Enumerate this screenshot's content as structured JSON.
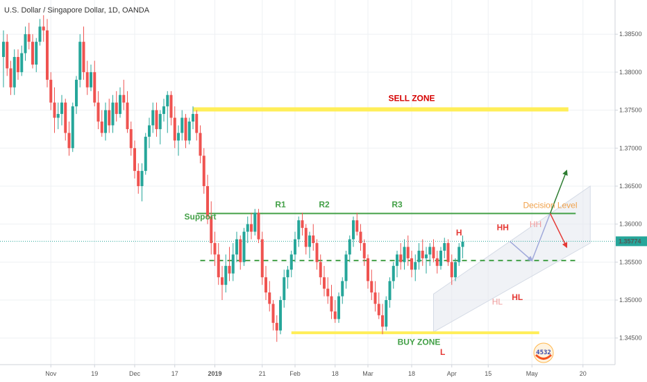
{
  "chart_data": {
    "type": "candlestick",
    "title": "U.S. Dollar / Singapore Dollar, 1D, OANDA",
    "ylim": [
      1.3415,
      1.3895
    ],
    "y_ticks": [
      {
        "value": 1.345,
        "label": "1.34500"
      },
      {
        "value": 1.35,
        "label": "1.35000"
      },
      {
        "value": 1.355,
        "label": "1.35500"
      },
      {
        "value": 1.36,
        "label": "1.36000"
      },
      {
        "value": 1.365,
        "label": "1.36500"
      },
      {
        "value": 1.37,
        "label": "1.37000"
      },
      {
        "value": 1.375,
        "label": "1.37500"
      },
      {
        "value": 1.38,
        "label": "1.38000"
      },
      {
        "value": 1.385,
        "label": "1.38500"
      }
    ],
    "current_price": {
      "value": 1.35774,
      "label": "1.35774"
    },
    "x_ticks": [
      {
        "index": 13,
        "label": "Nov",
        "bold": false
      },
      {
        "index": 25,
        "label": "19",
        "bold": false
      },
      {
        "index": 36,
        "label": "Dec",
        "bold": false
      },
      {
        "index": 47,
        "label": "17",
        "bold": false
      },
      {
        "index": 58,
        "label": "2019",
        "bold": true
      },
      {
        "index": 71,
        "label": "21",
        "bold": false
      },
      {
        "index": 80,
        "label": "Feb",
        "bold": false
      },
      {
        "index": 91,
        "label": "18",
        "bold": false
      },
      {
        "index": 100,
        "label": "Mar",
        "bold": false
      },
      {
        "index": 112,
        "label": "18",
        "bold": false
      },
      {
        "index": 123,
        "label": "Apr",
        "bold": false
      },
      {
        "index": 133,
        "label": "15",
        "bold": false
      },
      {
        "index": 145,
        "label": "May",
        "bold": false
      },
      {
        "index": 159,
        "label": "20",
        "bold": false
      }
    ],
    "candles": [
      [
        1.382,
        1.3855,
        1.378,
        1.384
      ],
      [
        1.384,
        1.385,
        1.3795,
        1.3805
      ],
      [
        1.3805,
        1.3815,
        1.377,
        1.378
      ],
      [
        1.378,
        1.383,
        1.377,
        1.382
      ],
      [
        1.382,
        1.383,
        1.379,
        1.38
      ],
      [
        1.38,
        1.3835,
        1.3795,
        1.3825
      ],
      [
        1.3825,
        1.386,
        1.3815,
        1.385
      ],
      [
        1.385,
        1.3865,
        1.383,
        1.384
      ],
      [
        1.384,
        1.385,
        1.3805,
        1.381
      ],
      [
        1.381,
        1.3845,
        1.38,
        1.384
      ],
      [
        1.384,
        1.387,
        1.3835,
        1.386
      ],
      [
        1.386,
        1.3875,
        1.384,
        1.3855
      ],
      [
        1.3855,
        1.387,
        1.378,
        1.379
      ],
      [
        1.379,
        1.38,
        1.375,
        1.376
      ],
      [
        1.376,
        1.378,
        1.372,
        1.374
      ],
      [
        1.374,
        1.376,
        1.3725,
        1.3745
      ],
      [
        1.3745,
        1.377,
        1.373,
        1.376
      ],
      [
        1.376,
        1.3765,
        1.371,
        1.372
      ],
      [
        1.372,
        1.3735,
        1.369,
        1.37
      ],
      [
        1.37,
        1.376,
        1.3695,
        1.3755
      ],
      [
        1.3755,
        1.3795,
        1.3745,
        1.379
      ],
      [
        1.379,
        1.385,
        1.378,
        1.384
      ],
      [
        1.384,
        1.386,
        1.379,
        1.38
      ],
      [
        1.38,
        1.3815,
        1.377,
        1.378
      ],
      [
        1.378,
        1.381,
        1.3775,
        1.38
      ],
      [
        1.38,
        1.3815,
        1.3755,
        1.376
      ],
      [
        1.376,
        1.3775,
        1.3725,
        1.3735
      ],
      [
        1.3735,
        1.375,
        1.3715,
        1.372
      ],
      [
        1.372,
        1.376,
        1.371,
        1.375
      ],
      [
        1.375,
        1.3765,
        1.372,
        1.373
      ],
      [
        1.373,
        1.377,
        1.372,
        1.376
      ],
      [
        1.376,
        1.3775,
        1.3735,
        1.3745
      ],
      [
        1.3745,
        1.378,
        1.374,
        1.377
      ],
      [
        1.377,
        1.379,
        1.375,
        1.376
      ],
      [
        1.376,
        1.3775,
        1.372,
        1.3725
      ],
      [
        1.3725,
        1.3735,
        1.369,
        1.37
      ],
      [
        1.37,
        1.371,
        1.366,
        1.367
      ],
      [
        1.367,
        1.368,
        1.364,
        1.365
      ],
      [
        1.365,
        1.368,
        1.363,
        1.367
      ],
      [
        1.367,
        1.372,
        1.3665,
        1.3715
      ],
      [
        1.3715,
        1.374,
        1.37,
        1.373
      ],
      [
        1.373,
        1.376,
        1.372,
        1.375
      ],
      [
        1.375,
        1.376,
        1.3715,
        1.3725
      ],
      [
        1.3725,
        1.375,
        1.3705,
        1.3745
      ],
      [
        1.3745,
        1.3765,
        1.3735,
        1.3755
      ],
      [
        1.3755,
        1.3775,
        1.372,
        1.377
      ],
      [
        1.377,
        1.3775,
        1.373,
        1.374
      ],
      [
        1.374,
        1.3755,
        1.37,
        1.371
      ],
      [
        1.371,
        1.373,
        1.369,
        1.372
      ],
      [
        1.372,
        1.375,
        1.371,
        1.374
      ],
      [
        1.374,
        1.3745,
        1.37,
        1.371
      ],
      [
        1.371,
        1.374,
        1.3705,
        1.3735
      ],
      [
        1.3735,
        1.3755,
        1.3725,
        1.3745
      ],
      [
        1.3745,
        1.375,
        1.371,
        1.372
      ],
      [
        1.372,
        1.373,
        1.368,
        1.369
      ],
      [
        1.369,
        1.37,
        1.364,
        1.365
      ],
      [
        1.365,
        1.3665,
        1.36,
        1.361
      ],
      [
        1.361,
        1.363,
        1.356,
        1.3575
      ],
      [
        1.3575,
        1.359,
        1.3545,
        1.356
      ],
      [
        1.356,
        1.3575,
        1.352,
        1.353
      ],
      [
        1.353,
        1.3545,
        1.35,
        1.352
      ],
      [
        1.352,
        1.356,
        1.351,
        1.3545
      ],
      [
        1.3545,
        1.357,
        1.3525,
        1.3535
      ],
      [
        1.3535,
        1.3575,
        1.3525,
        1.356
      ],
      [
        1.356,
        1.359,
        1.355,
        1.358
      ],
      [
        1.358,
        1.3585,
        1.354,
        1.355
      ],
      [
        1.355,
        1.3595,
        1.3545,
        1.359
      ],
      [
        1.359,
        1.361,
        1.3575,
        1.36
      ],
      [
        1.36,
        1.3615,
        1.358,
        1.359
      ],
      [
        1.359,
        1.362,
        1.3585,
        1.3615
      ],
      [
        1.3615,
        1.362,
        1.3575,
        1.358
      ],
      [
        1.358,
        1.359,
        1.352,
        1.353
      ],
      [
        1.353,
        1.3545,
        1.35,
        1.351
      ],
      [
        1.351,
        1.3525,
        1.3485,
        1.3495
      ],
      [
        1.3495,
        1.35,
        1.346,
        1.347
      ],
      [
        1.347,
        1.348,
        1.3445,
        1.346
      ],
      [
        1.346,
        1.3505,
        1.3455,
        1.35
      ],
      [
        1.35,
        1.354,
        1.349,
        1.353
      ],
      [
        1.353,
        1.3545,
        1.3515,
        1.354
      ],
      [
        1.354,
        1.3565,
        1.353,
        1.356
      ],
      [
        1.356,
        1.359,
        1.355,
        1.358
      ],
      [
        1.358,
        1.361,
        1.357,
        1.3605
      ],
      [
        1.3605,
        1.3615,
        1.3585,
        1.3595
      ],
      [
        1.3595,
        1.36,
        1.356,
        1.357
      ],
      [
        1.357,
        1.359,
        1.3555,
        1.3585
      ],
      [
        1.3585,
        1.36,
        1.3565,
        1.3575
      ],
      [
        1.3575,
        1.358,
        1.354,
        1.355
      ],
      [
        1.355,
        1.356,
        1.352,
        1.353
      ],
      [
        1.353,
        1.3545,
        1.3505,
        1.3515
      ],
      [
        1.3515,
        1.353,
        1.3495,
        1.3505
      ],
      [
        1.3505,
        1.352,
        1.3475,
        1.3485
      ],
      [
        1.3485,
        1.35,
        1.347,
        1.3475
      ],
      [
        1.3475,
        1.351,
        1.347,
        1.3505
      ],
      [
        1.3505,
        1.353,
        1.3495,
        1.3525
      ],
      [
        1.3525,
        1.3565,
        1.3515,
        1.356
      ],
      [
        1.356,
        1.3585,
        1.355,
        1.358
      ],
      [
        1.358,
        1.361,
        1.357,
        1.3605
      ],
      [
        1.3605,
        1.3615,
        1.3585,
        1.359
      ],
      [
        1.359,
        1.36,
        1.3565,
        1.3575
      ],
      [
        1.3575,
        1.358,
        1.3545,
        1.3555
      ],
      [
        1.3555,
        1.356,
        1.3515,
        1.3525
      ],
      [
        1.3525,
        1.354,
        1.35,
        1.351
      ],
      [
        1.351,
        1.3525,
        1.3485,
        1.3495
      ],
      [
        1.3495,
        1.351,
        1.3475,
        1.348
      ],
      [
        1.348,
        1.3495,
        1.3455,
        1.3465
      ],
      [
        1.3465,
        1.3505,
        1.346,
        1.35
      ],
      [
        1.35,
        1.353,
        1.349,
        1.3525
      ],
      [
        1.3525,
        1.355,
        1.3515,
        1.3545
      ],
      [
        1.3545,
        1.3565,
        1.353,
        1.356
      ],
      [
        1.356,
        1.3575,
        1.354,
        1.355
      ],
      [
        1.355,
        1.358,
        1.354,
        1.357
      ],
      [
        1.357,
        1.3585,
        1.3545,
        1.3555
      ],
      [
        1.3555,
        1.3565,
        1.353,
        1.354
      ],
      [
        1.354,
        1.356,
        1.3525,
        1.355
      ],
      [
        1.355,
        1.3575,
        1.354,
        1.3565
      ],
      [
        1.3565,
        1.358,
        1.3545,
        1.3555
      ],
      [
        1.3555,
        1.357,
        1.3535,
        1.356
      ],
      [
        1.356,
        1.3575,
        1.3545,
        1.357
      ],
      [
        1.357,
        1.358,
        1.355,
        1.3555
      ],
      [
        1.3555,
        1.3565,
        1.3535,
        1.3545
      ],
      [
        1.3545,
        1.357,
        1.354,
        1.3565
      ],
      [
        1.3565,
        1.3582,
        1.3555,
        1.3575
      ],
      [
        1.3575,
        1.358,
        1.3545,
        1.355
      ],
      [
        1.355,
        1.356,
        1.352,
        1.353
      ],
      [
        1.353,
        1.3555,
        1.3525,
        1.355
      ],
      [
        1.355,
        1.3575,
        1.3545,
        1.357
      ],
      [
        1.357,
        1.3585,
        1.3555,
        1.3577
      ]
    ],
    "annotations": [
      {
        "type": "hline",
        "value": 1.3751,
        "from": 52,
        "to": 155,
        "color": "#ffee58",
        "width": 6,
        "label": "SELL ZONE",
        "label_value": 1.3762,
        "label_at": 112,
        "label_color": "#d50000"
      },
      {
        "type": "hline",
        "value": 1.3457,
        "from": 79,
        "to": 147,
        "color": "#ffee58",
        "width": 4,
        "label": "BUY ZONE",
        "label_value": 1.3441,
        "label_at": 114,
        "label_color": "#43a047"
      },
      {
        "type": "hline",
        "value": 1.3614,
        "from": 53,
        "to": 157,
        "color": "#43a047",
        "width": 2,
        "label": "Decision Level",
        "label_value": 1.3621,
        "label_at": 150,
        "label_color": "#f0a048"
      },
      {
        "type": "dashed",
        "value": 1.3552,
        "from": 54,
        "to": 157,
        "color": "#43a047",
        "width": 2
      }
    ]
  },
  "labels": {
    "support": "Support",
    "r1": "R1",
    "r2": "R2",
    "r3": "R3",
    "h": "H",
    "hh1": "HH",
    "hh2": "HH",
    "hl1": "HL",
    "hl2": "HL",
    "l": "L",
    "badge": "4532"
  },
  "colors": {
    "up": "#26a69a",
    "down": "#ef5350",
    "price_line": "#26a69a",
    "grid": "#eef0f3"
  }
}
